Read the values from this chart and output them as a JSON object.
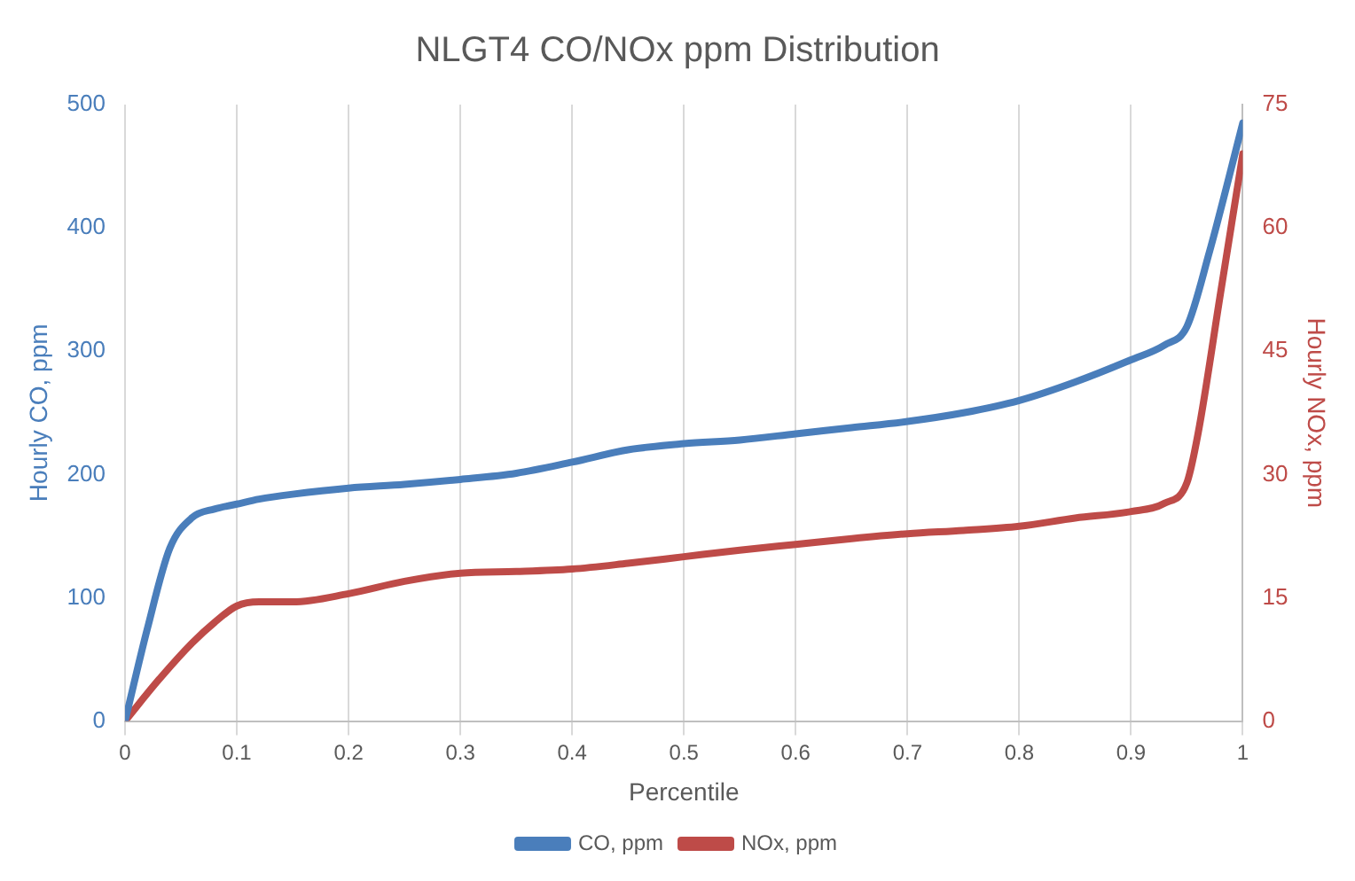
{
  "chart_data": {
    "type": "line",
    "title": "NLGT4 CO/NOx ppm Distribution",
    "xlabel": "Percentile",
    "ylabel": "Hourly CO, ppm",
    "y2label": "Hourly NOx, ppm",
    "xlim": [
      0,
      1
    ],
    "xticks": [
      0,
      0.1,
      0.2,
      0.3,
      0.4,
      0.5,
      0.6,
      0.7,
      0.8,
      0.9,
      1
    ],
    "ylim": [
      0,
      500
    ],
    "yticks": [
      0,
      100,
      200,
      300,
      400,
      500
    ],
    "y2lim": [
      0,
      75
    ],
    "y2ticks": [
      0,
      15,
      30,
      45,
      60,
      75
    ],
    "grid": "x",
    "legend": "bottom",
    "marker": "none",
    "line_style": "solid",
    "series": [
      {
        "name": "CO, ppm",
        "color": "#4a7ebb",
        "x": [
          0,
          0.02,
          0.04,
          0.06,
          0.08,
          0.1,
          0.12,
          0.15,
          0.2,
          0.25,
          0.3,
          0.35,
          0.4,
          0.45,
          0.5,
          0.55,
          0.6,
          0.65,
          0.7,
          0.75,
          0.8,
          0.85,
          0.9,
          0.93,
          0.95,
          0.97,
          1
        ],
        "values": [
          0,
          75,
          140,
          165,
          172,
          176,
          180,
          184,
          189,
          192,
          196,
          201,
          210,
          220,
          225,
          228,
          233,
          238,
          243,
          250,
          260,
          275,
          293,
          305,
          320,
          380,
          485
        ]
      },
      {
        "name": "NOx, ppm",
        "color": "#be4b48",
        "axis": "y2",
        "x": [
          0,
          0.03,
          0.06,
          0.08,
          0.1,
          0.12,
          0.15,
          0.2,
          0.25,
          0.3,
          0.35,
          0.4,
          0.45,
          0.5,
          0.55,
          0.6,
          0.65,
          0.7,
          0.75,
          0.8,
          0.85,
          0.9,
          0.93,
          0.95,
          0.96,
          0.98,
          1
        ],
        "values": [
          0,
          5,
          9.5,
          12,
          14,
          14.5,
          14.5,
          15.5,
          17,
          18,
          18.2,
          18.5,
          19.2,
          20,
          20.8,
          21.5,
          22.2,
          22.8,
          23.2,
          23.7,
          24.7,
          25.5,
          26.5,
          29,
          35,
          52,
          69
        ]
      }
    ]
  }
}
